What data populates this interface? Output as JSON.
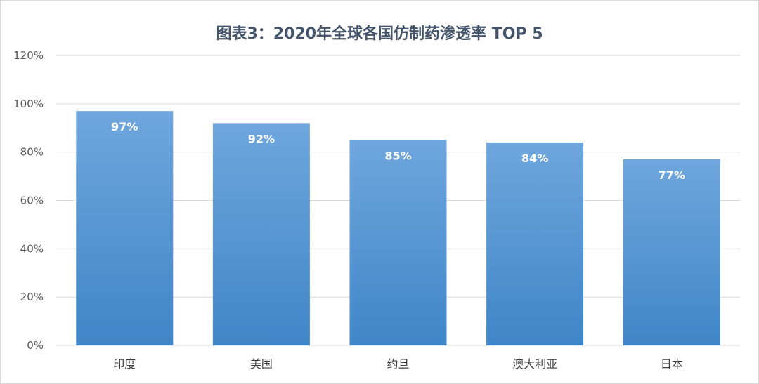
{
  "chart_data": {
    "type": "bar",
    "title": "图表3：2020年全球各国仿制药渗透率 TOP 5",
    "categories": [
      "印度",
      "美国",
      "约旦",
      "澳大利亚",
      "日本"
    ],
    "values": [
      97,
      92,
      85,
      84,
      77
    ],
    "data_labels": [
      "97%",
      "92%",
      "85%",
      "84%",
      "77%"
    ],
    "ylim": [
      0,
      120
    ],
    "yticks": [
      0,
      20,
      40,
      60,
      80,
      100,
      120
    ],
    "ytick_labels": [
      "0%",
      "20%",
      "40%",
      "60%",
      "80%",
      "100%",
      "120%"
    ],
    "grid": true,
    "legend": "none",
    "colors": {
      "bar_top": "#6fa6dd",
      "bar_bottom": "#3f86c8",
      "title": "#44546a",
      "grid": "#d9d9d9"
    }
  }
}
